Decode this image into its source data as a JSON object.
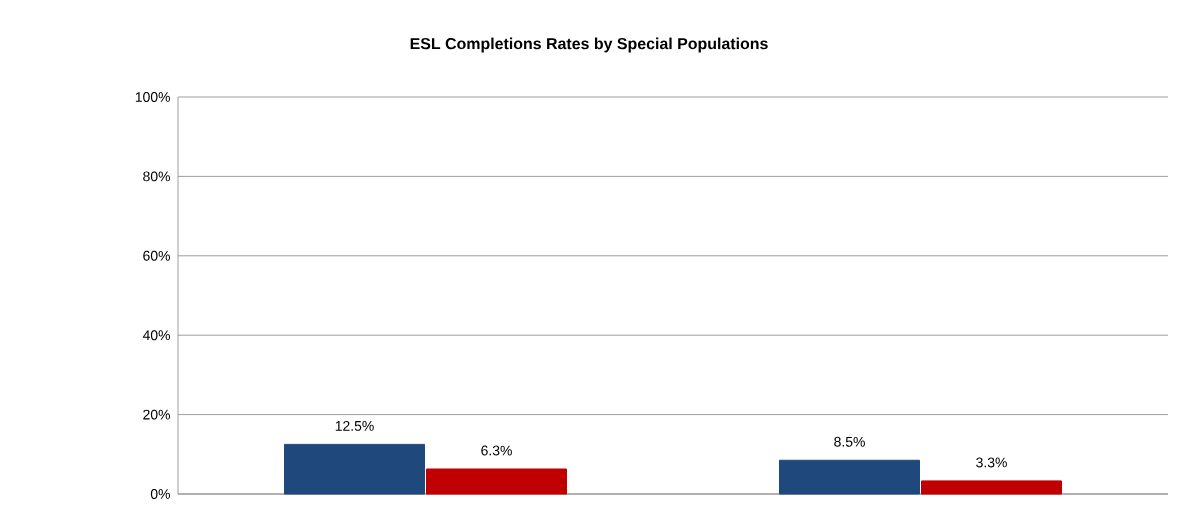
{
  "chart_data": {
    "type": "bar",
    "title": "ESL Completions Rates by  Special Populations",
    "categories": [
      null,
      null
    ],
    "series": [
      {
        "color": "#1f497d",
        "values": [
          12.5,
          8.5
        ],
        "value_labels": [
          "12.5%",
          "8.5%"
        ]
      },
      {
        "color": "#c00000",
        "values": [
          6.3,
          3.3
        ],
        "value_labels": [
          "6.3%",
          "3.3%"
        ]
      }
    ],
    "ylim": [
      0,
      100
    ],
    "yticks": [
      {
        "value": 0,
        "label": "0%"
      },
      {
        "value": 20,
        "label": "20%"
      },
      {
        "value": 40,
        "label": "40%"
      },
      {
        "value": 60,
        "label": "60%"
      },
      {
        "value": 80,
        "label": "80%"
      },
      {
        "value": 100,
        "label": "100%"
      }
    ],
    "grid": "y"
  }
}
